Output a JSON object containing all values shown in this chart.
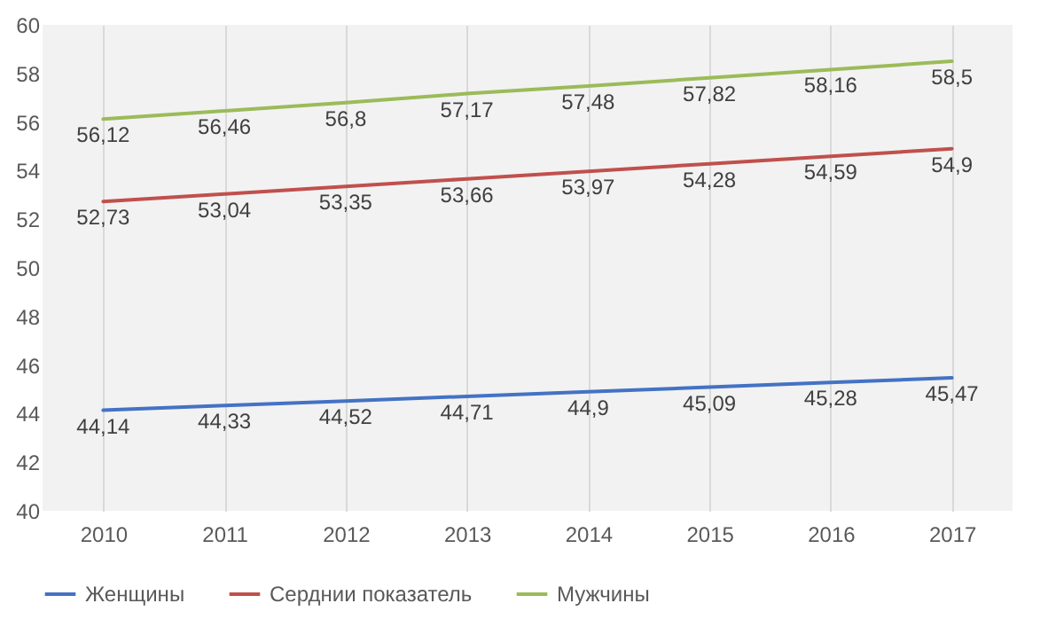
{
  "chart_data": {
    "type": "line",
    "categories": [
      "2010",
      "2011",
      "2012",
      "2013",
      "2014",
      "2015",
      "2016",
      "2017"
    ],
    "series": [
      {
        "name": "Женщины",
        "color": "#4472c4",
        "values": [
          44.14,
          44.33,
          44.52,
          44.71,
          44.9,
          45.09,
          45.28,
          45.47
        ],
        "value_labels": [
          "44,14",
          "44,33",
          "44,52",
          "44,71",
          "44,9",
          "45,09",
          "45,28",
          "45,47"
        ]
      },
      {
        "name": "Серднии показатель",
        "color": "#c0504d",
        "values": [
          52.73,
          53.04,
          53.35,
          53.66,
          53.97,
          54.28,
          54.59,
          54.9
        ],
        "value_labels": [
          "52,73",
          "53,04",
          "53,35",
          "53,66",
          "53,97",
          "54,28",
          "54,59",
          "54,9"
        ]
      },
      {
        "name": "Мужчины",
        "color": "#9bbb59",
        "values": [
          56.12,
          56.46,
          56.8,
          57.17,
          57.48,
          57.82,
          58.16,
          58.5
        ],
        "value_labels": [
          "56,12",
          "56,46",
          "56,8",
          "57,17",
          "57,48",
          "57,82",
          "58,16",
          "58,5"
        ]
      }
    ],
    "ylim": [
      40,
      60
    ],
    "yticks": [
      40,
      42,
      44,
      46,
      48,
      50,
      52,
      54,
      56,
      58,
      60
    ],
    "grid": "x",
    "legend": "bottom",
    "marker": "none",
    "line_style": "solid"
  }
}
